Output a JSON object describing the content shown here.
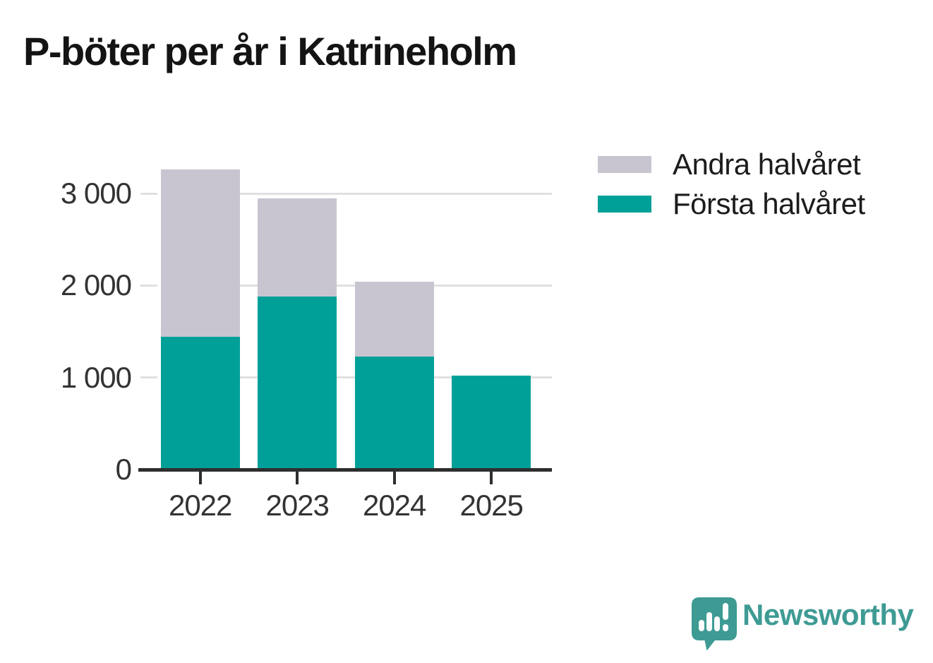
{
  "title": "P-böter per år i Katrineholm",
  "legend": {
    "items": [
      {
        "label": "Andra halvåret",
        "color": "#C8C5D0"
      },
      {
        "label": "Första halvåret",
        "color": "#00A099"
      }
    ]
  },
  "chart_data": {
    "type": "bar",
    "stacked": true,
    "title": "P-böter per år i Katrineholm",
    "categories": [
      "2022",
      "2023",
      "2024",
      "2025"
    ],
    "series": [
      {
        "name": "Första halvåret",
        "color": "#00A099",
        "values": [
          1440,
          1880,
          1230,
          1020
        ]
      },
      {
        "name": "Andra halvåret",
        "color": "#C8C5D0",
        "values": [
          1820,
          1065,
          810,
          0
        ]
      }
    ],
    "totals": [
      3260,
      2945,
      2040,
      1020
    ],
    "ylim": [
      0,
      3300
    ],
    "yticks": [
      0,
      1000,
      2000,
      3000
    ],
    "ytick_labels": [
      "0",
      "1 000",
      "2 000",
      "3 000"
    ],
    "xlabel": "",
    "ylabel": "",
    "grid": "horizontal",
    "legend_position": "top-right"
  },
  "branding": {
    "name": "Newsworthy",
    "logo_icon": "newsworthy-speech-bubble-chart-icon",
    "color": "#3E9B94"
  },
  "colors": {
    "first_half": "#00A099",
    "second_half": "#C8C5D0",
    "grid": "#E0E0E0",
    "axis": "#2E2E2E",
    "tick_text": "#333333",
    "title_text": "#141414",
    "background": "#FFFFFF"
  }
}
